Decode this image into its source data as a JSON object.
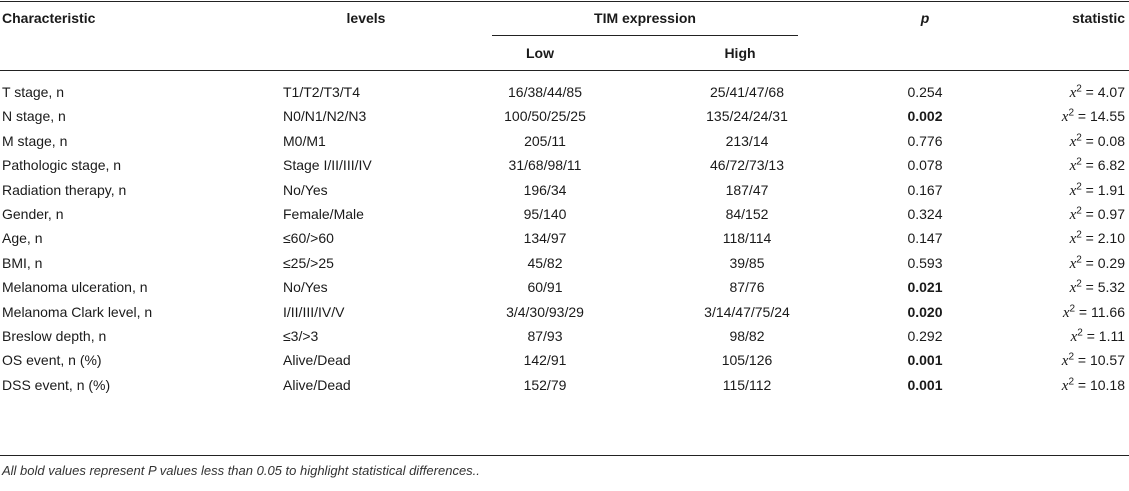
{
  "header": {
    "characteristic": "Characteristic",
    "levels": "levels",
    "tim_expression": "TIM expression",
    "low": "Low",
    "high": "High",
    "p": "p",
    "statistic": "statistic"
  },
  "rows": [
    {
      "characteristic": "T stage, n",
      "levels": "T1/T2/T3/T4",
      "low": "16/38/44/85",
      "high": "25/41/47/68",
      "p": "0.254",
      "p_bold": false,
      "stat_symbol": "x",
      "stat_exp": "2",
      "stat_value": " = 4.07"
    },
    {
      "characteristic": "N stage, n",
      "levels": "N0/N1/N2/N3",
      "low": "100/50/25/25",
      "high": "135/24/24/31",
      "p": "0.002",
      "p_bold": true,
      "stat_symbol": "x",
      "stat_exp": "2",
      "stat_value": " = 14.55"
    },
    {
      "characteristic": "M stage, n",
      "levels": "M0/M1",
      "low": "205/11",
      "high": "213/14",
      "p": "0.776",
      "p_bold": false,
      "stat_symbol": "x",
      "stat_exp": "2",
      "stat_value": " = 0.08"
    },
    {
      "characteristic": "Pathologic stage, n",
      "levels": "Stage I/II/III/IV",
      "low": "31/68/98/11",
      "high": "46/72/73/13",
      "p": "0.078",
      "p_bold": false,
      "stat_symbol": "x",
      "stat_exp": "2",
      "stat_value": " = 6.82"
    },
    {
      "characteristic": "Radiation therapy, n",
      "levels": "No/Yes",
      "low": "196/34",
      "high": "187/47",
      "p": "0.167",
      "p_bold": false,
      "stat_symbol": "x",
      "stat_exp": "2",
      "stat_value": " = 1.91"
    },
    {
      "characteristic": "Gender, n",
      "levels": "Female/Male",
      "low": "95/140",
      "high": "84/152",
      "p": "0.324",
      "p_bold": false,
      "stat_symbol": "x",
      "stat_exp": "2",
      "stat_value": " = 0.97"
    },
    {
      "characteristic": "Age, n",
      "levels": "≤60/>60",
      "low": "134/97",
      "high": "118/114",
      "p": "0.147",
      "p_bold": false,
      "stat_symbol": "x",
      "stat_exp": "2",
      "stat_value": " = 2.10"
    },
    {
      "characteristic": "BMI, n",
      "levels": "≤25/>25",
      "low": "45/82",
      "high": "39/85",
      "p": "0.593",
      "p_bold": false,
      "stat_symbol": "x",
      "stat_exp": "2",
      "stat_value": " = 0.29"
    },
    {
      "characteristic": "Melanoma ulceration, n",
      "levels": "No/Yes",
      "low": "60/91",
      "high": "87/76",
      "p": "0.021",
      "p_bold": true,
      "stat_symbol": "x",
      "stat_exp": "2",
      "stat_value": " = 5.32"
    },
    {
      "characteristic": "Melanoma Clark level, n",
      "levels": "I/II/III/IV/V",
      "low": "3/4/30/93/29",
      "high": "3/14/47/75/24",
      "p": "0.020",
      "p_bold": true,
      "stat_symbol": "x",
      "stat_exp": "2",
      "stat_value": " = 11.66"
    },
    {
      "characteristic": "Breslow depth, n",
      "levels": "≤3/>3",
      "low": "87/93",
      "high": "98/82",
      "p": "0.292",
      "p_bold": false,
      "stat_symbol": "x",
      "stat_exp": "2",
      "stat_value": " = 1.11"
    },
    {
      "characteristic": "OS event, n (%)",
      "levels": "Alive/Dead",
      "low": "142/91",
      "high": "105/126",
      "p": "0.001",
      "p_bold": true,
      "stat_symbol": "x",
      "stat_exp": "2",
      "stat_value": " = 10.57"
    },
    {
      "characteristic": "DSS event, n (%)",
      "levels": "Alive/Dead",
      "low": "152/79",
      "high": "115/112",
      "p": "0.001",
      "p_bold": true,
      "stat_symbol": "x",
      "stat_exp": "2",
      "stat_value": " = 10.18"
    }
  ],
  "footnote": "All bold values represent P values less than 0.05 to highlight statistical differences.."
}
